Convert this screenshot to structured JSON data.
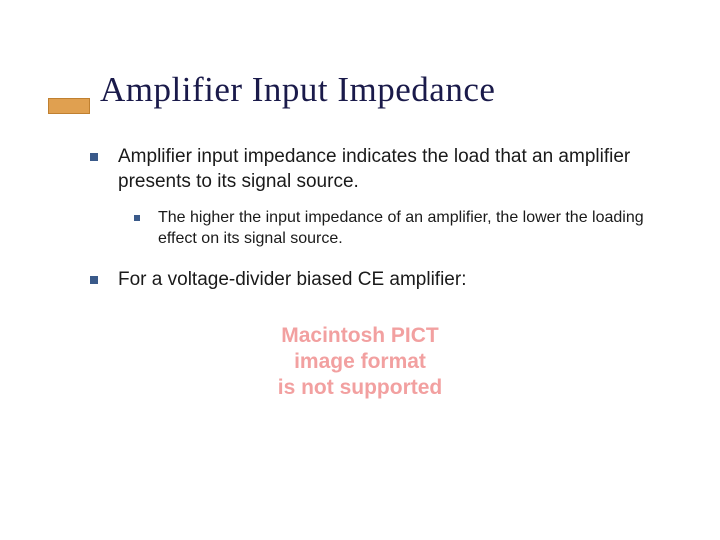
{
  "title": "Amplifier Input Impedance",
  "bullets": {
    "item1": "Amplifier input impedance indicates the load that an amplifier presents to its signal source.",
    "item1_sub1": "The higher the input impedance of an amplifier, the lower the loading effect on its signal source.",
    "item2": "For a voltage-divider biased CE amplifier:"
  },
  "placeholder": {
    "line1": "Macintosh PICT",
    "line2": "image format",
    "line3": "is not supported",
    "text_color": "#f2a0a0",
    "fontsize": 21
  },
  "colors": {
    "title_color": "#1a1a4a",
    "bullet_color": "#3a5a8a",
    "accent_bar": "#e0a050",
    "body_text": "#1a1a1a",
    "background": "#ffffff"
  },
  "typography": {
    "title_fontsize": 35,
    "lvl1_fontsize": 19,
    "lvl2_fontsize": 16,
    "title_font": "Times New Roman",
    "body_font": "Verdana"
  }
}
